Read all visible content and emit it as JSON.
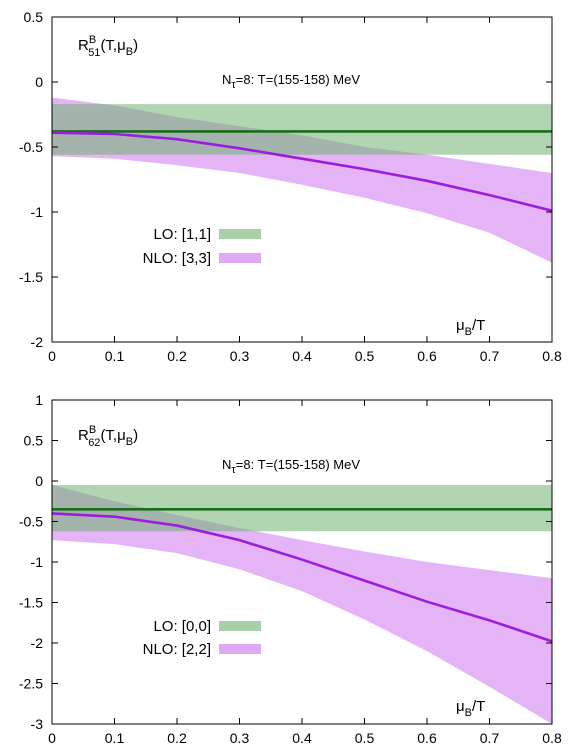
{
  "chart_data": [
    {
      "type": "line",
      "title": "",
      "xlabel": "μ_B/T",
      "ylabel": "R^B_51(T,μ_B)",
      "label_parts": {
        "main": "R",
        "sup": "B",
        "sub": "51",
        "args": "(T,μ",
        "args_sub": "B",
        "args_end": ")"
      },
      "xlabel_parts": {
        "main": "μ",
        "sub": "B",
        "end": "/T"
      },
      "annotation_parts": {
        "main": "N",
        "sub": "τ",
        "end": "=8: T=(155-158) MeV"
      },
      "xlim": [
        0,
        0.8
      ],
      "ylim": [
        -2,
        0.5
      ],
      "xticks": [
        "0",
        "0.1",
        "0.2",
        "0.3",
        "0.4",
        "0.5",
        "0.6",
        "0.7",
        "0.8"
      ],
      "yticks": [
        "0.5",
        "0",
        "-0.5",
        "-1",
        "-1.5",
        "-2"
      ],
      "ytick_values": [
        0.5,
        0,
        -0.5,
        -1,
        -1.5,
        -2
      ],
      "grid": false,
      "legend_position": "lower-left",
      "series": [
        {
          "name": "LO: [1,1]",
          "color": "#1a6e1a",
          "band_color": "#6fb36f",
          "x": [
            0,
            0.8
          ],
          "y": [
            -0.38,
            -0.38
          ],
          "band_upper": [
            -0.17,
            -0.17
          ],
          "band_lower": [
            -0.56,
            -0.56
          ]
        },
        {
          "name": "NLO: [3,3]",
          "color": "#9b1ee0",
          "band_color": "#d58cf2",
          "x": [
            0,
            0.1,
            0.2,
            0.3,
            0.4,
            0.5,
            0.6,
            0.7,
            0.8
          ],
          "y": [
            -0.39,
            -0.4,
            -0.44,
            -0.51,
            -0.59,
            -0.67,
            -0.76,
            -0.87,
            -0.99
          ],
          "band_upper": [
            -0.12,
            -0.18,
            -0.27,
            -0.34,
            -0.41,
            -0.5,
            -0.56,
            -0.63,
            -0.7
          ],
          "band_lower": [
            -0.57,
            -0.59,
            -0.64,
            -0.7,
            -0.79,
            -0.89,
            -1.01,
            -1.16,
            -1.39
          ]
        }
      ]
    },
    {
      "type": "line",
      "title": "",
      "xlabel": "μ_B/T",
      "ylabel": "R^B_62(T,μ_B)",
      "label_parts": {
        "main": "R",
        "sup": "B",
        "sub": "62",
        "args": "(T,μ",
        "args_sub": "B",
        "args_end": ")"
      },
      "xlabel_parts": {
        "main": "μ",
        "sub": "B",
        "end": "/T"
      },
      "annotation_parts": {
        "main": "N",
        "sub": "τ",
        "end": "=8: T=(155-158) MeV"
      },
      "xlim": [
        0,
        0.8
      ],
      "ylim": [
        -3,
        1
      ],
      "xticks": [
        "0",
        "0.1",
        "0.2",
        "0.3",
        "0.4",
        "0.5",
        "0.6",
        "0.7",
        "0.8"
      ],
      "yticks": [
        "1",
        "0.5",
        "0",
        "-0.5",
        "-1",
        "-1.5",
        "-2",
        "-2.5",
        "-3"
      ],
      "ytick_values": [
        1,
        0.5,
        0,
        -0.5,
        -1,
        -1.5,
        -2,
        -2.5,
        -3
      ],
      "grid": false,
      "legend_position": "lower-left",
      "series": [
        {
          "name": "LO: [0,0]",
          "color": "#1a6e1a",
          "band_color": "#6fb36f",
          "x": [
            0,
            0.8
          ],
          "y": [
            -0.35,
            -0.35
          ],
          "band_upper": [
            -0.05,
            -0.05
          ],
          "band_lower": [
            -0.62,
            -0.62
          ]
        },
        {
          "name": "NLO: [2,2]",
          "color": "#9b1ee0",
          "band_color": "#d58cf2",
          "x": [
            0,
            0.1,
            0.2,
            0.3,
            0.4,
            0.5,
            0.6,
            0.7,
            0.8
          ],
          "y": [
            -0.4,
            -0.44,
            -0.55,
            -0.73,
            -0.97,
            -1.23,
            -1.49,
            -1.72,
            -1.98
          ],
          "band_upper": [
            -0.05,
            -0.25,
            -0.42,
            -0.58,
            -0.73,
            -0.87,
            -1.0,
            -1.1,
            -1.2
          ],
          "band_lower": [
            -0.73,
            -0.78,
            -0.89,
            -1.09,
            -1.36,
            -1.71,
            -2.1,
            -2.54,
            -3.0
          ]
        }
      ]
    }
  ]
}
